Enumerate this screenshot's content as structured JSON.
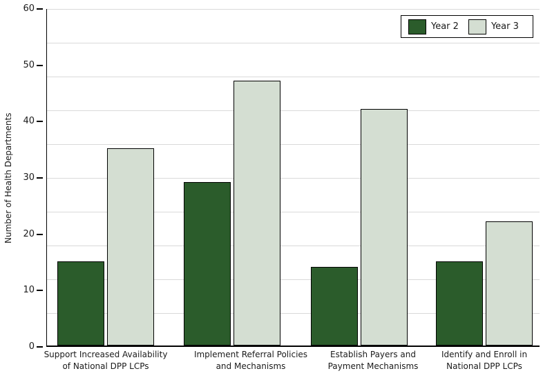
{
  "chart_data": {
    "type": "bar",
    "title": "",
    "ylabel": "Number of Health Departments",
    "xlabel": "",
    "ylim": [
      0,
      60
    ],
    "yticks": [
      0,
      10,
      20,
      30,
      40,
      50,
      60
    ],
    "grid": true,
    "grid_divisions": 10,
    "legend_position": "top-right",
    "categories": [
      [
        "Support Increased Availability",
        "of National DPP LCPs"
      ],
      [
        "Implement Referral Policies",
        "and Mechanisms"
      ],
      [
        "Establish Payers and",
        "Payment Mechanisms"
      ],
      [
        "Identify and Enroll in",
        "National DPP LCPs"
      ]
    ],
    "series": [
      {
        "name": "Year 2",
        "color": "#2b5c2b",
        "values": [
          15,
          29,
          14,
          15
        ]
      },
      {
        "name": "Year 3",
        "color": "#d4ded2",
        "values": [
          35,
          47,
          42,
          22
        ]
      }
    ],
    "colors": {
      "background": "#ffffff",
      "gridline": "#d9d9d9",
      "axis": "#000000",
      "text": "#1a1a1a",
      "bar_border": "#000000",
      "legend_border": "#000000"
    }
  }
}
